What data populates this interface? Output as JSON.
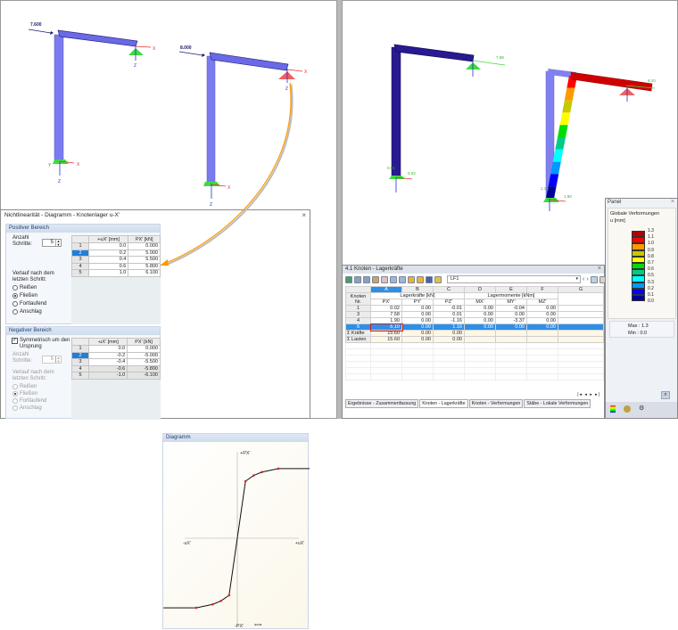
{
  "left_view": {
    "frame1_load_label": "7.600",
    "frame2_load_label": "8.000",
    "axis_x": "X",
    "axis_y": "Y",
    "axis_z": "Z"
  },
  "right_view": {
    "frameA_labels": [
      "7.58",
      "0.01",
      "0.02"
    ],
    "frameB_labels": [
      "6.10",
      "1.16",
      "1.90"
    ]
  },
  "dialog": {
    "title": "Nichtlinearität - Diagramm - Knotenlager u-X'",
    "close": "×",
    "positive": {
      "header": "Positiver Bereich",
      "steps_label": "Anzahl Schritte:",
      "steps_value": "5",
      "after_label": "Verlauf nach dem letzten Schritt:",
      "options": [
        "Reißen",
        "Fließen",
        "Fortlaufend",
        "Anschlag"
      ],
      "selected_option": "Fließen",
      "columns": [
        "+uX' [mm]",
        "PX' [kN]"
      ],
      "rows": [
        [
          "1",
          "0.0",
          "0.000"
        ],
        [
          "2",
          "0.2",
          "5.000"
        ],
        [
          "3",
          "0.4",
          "5.500"
        ],
        [
          "4",
          "0.6",
          "5.800"
        ],
        [
          "5",
          "1.0",
          "6.100"
        ]
      ],
      "selected_row": "2"
    },
    "negative": {
      "header": "Negativer Bereich",
      "symmetric_label": "Symmetrisch um den Ursprung",
      "symmetric_checked": true,
      "steps_label": "Anzahl Schritte:",
      "steps_value": "5",
      "after_label": "Verlauf nach dem letzten Schritt:",
      "options": [
        "Reißen",
        "Fließen",
        "Fortlaufend",
        "Anschlag"
      ],
      "selected_option": "Fließen",
      "columns": [
        "-uX' [mm]",
        "PX' [kN]"
      ],
      "rows": [
        [
          "1",
          "0.0",
          "0.000"
        ],
        [
          "2",
          "-0.2",
          "-5.000"
        ],
        [
          "3",
          "-0.4",
          "-5.500"
        ],
        [
          "4",
          "-0.6",
          "-5.800"
        ],
        [
          "5",
          "-1.0",
          "-6.100"
        ]
      ],
      "selected_row": "2"
    },
    "diagram": {
      "header": "Diagramm",
      "y_pos_label": "+PX'",
      "y_neg_label": "-PX'",
      "x_pos_label": "+uX'",
      "x_neg_label": "-uX'",
      "curve_color": "#111111",
      "point_color": "#e02020"
    }
  },
  "results": {
    "title": "4.1 Knoten - Lagerkräfte",
    "close": "×",
    "loadcase": "LF1",
    "col_letters": [
      "A",
      "B",
      "C",
      "D",
      "E",
      "F",
      "G"
    ],
    "row_header": "Knoten Nr.",
    "group_forces": "Lagerkräfte [kN]",
    "group_moments": "Lagermomente [kNm]",
    "columns": [
      "PX'",
      "PY'",
      "PZ'",
      "MX'",
      "MY'",
      "MZ'"
    ],
    "rows": [
      [
        "1",
        "0.02",
        "0.00",
        "-0.01",
        "0.00",
        "-0.04",
        "0.00"
      ],
      [
        "3",
        "7.58",
        "0.00",
        "0.01",
        "0.00",
        "0.00",
        "0.00"
      ],
      [
        "4",
        "1.90",
        "0.00",
        "-1.16",
        "0.00",
        "-3.37",
        "0.00"
      ],
      [
        "6",
        "6.10",
        "0.00",
        "1.16",
        "0.00",
        "0.00",
        "0.00"
      ]
    ],
    "selected_row": "6",
    "sums": [
      [
        "Σ Kräfte",
        "15.60",
        "0.00",
        "0.00"
      ],
      [
        "Σ Lasten",
        "15.60",
        "0.00",
        "0.00"
      ]
    ],
    "tabs": [
      "Ergebnisse - Zusammenfassung",
      "Knoten - Lagerkräfte",
      "Knoten - Verformungen",
      "Stäbe - Lokale Verformungen"
    ],
    "active_tab": "Knoten - Lagerkräfte"
  },
  "panel": {
    "title": "Panel",
    "close": "×",
    "heading": "Globale Verformungen",
    "unit": "u [mm]",
    "legend_values": [
      "1.3",
      "1.1",
      "1.0",
      "0.9",
      "0.8",
      "0.7",
      "0.6",
      "0.5",
      "0.3",
      "0.2",
      "0.1",
      "0.0"
    ],
    "legend_colors": [
      "#b30000",
      "#ff0000",
      "#ff9900",
      "#c8c800",
      "#ffff00",
      "#00dd00",
      "#00cc88",
      "#00ffff",
      "#0099ff",
      "#0000ff",
      "#000099"
    ],
    "max_label": "Max",
    "max_value": "1.3",
    "min_label": "Min",
    "min_value": "0.0"
  },
  "accent_color": "#ff9900"
}
